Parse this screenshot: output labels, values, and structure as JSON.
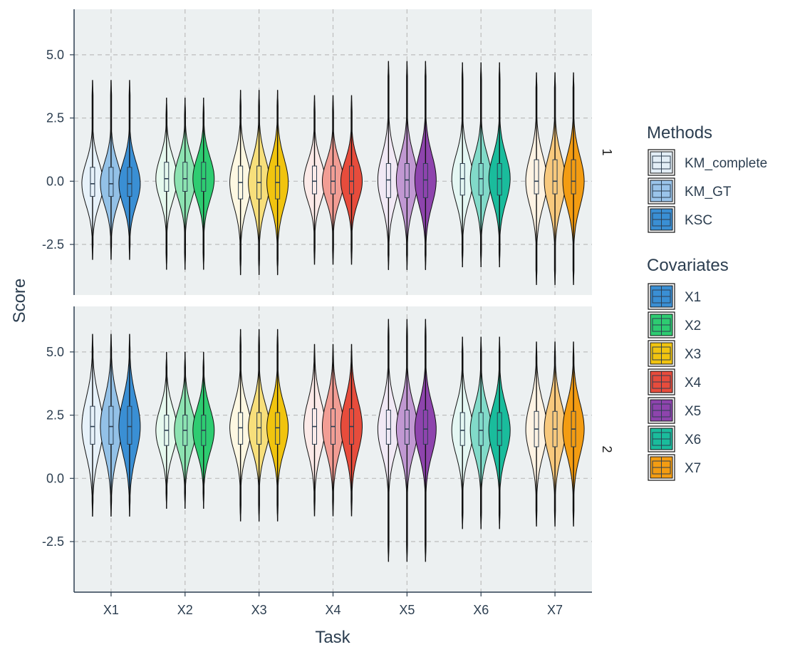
{
  "chart_data": {
    "type": "violin",
    "xlabel": "Task",
    "ylabel": "Score",
    "categories": [
      "X1",
      "X2",
      "X3",
      "X4",
      "X5",
      "X6",
      "X7"
    ],
    "ylim": [
      -4.5,
      6.8
    ],
    "yticks": [
      -2.5,
      0.0,
      2.5,
      5.0
    ],
    "ytick_labels": [
      "-2.5",
      "0.0",
      "2.5",
      "5.0"
    ],
    "grid": true,
    "methods": {
      "title": "Methods",
      "items": [
        "KM_complete",
        "KM_GT",
        "KSC"
      ]
    },
    "covariates": {
      "title": "Covariates",
      "items": [
        "X1",
        "X2",
        "X3",
        "X4",
        "X5",
        "X6",
        "X7"
      ],
      "colors": [
        "#3a8fd4",
        "#2ecc71",
        "#f1c40f",
        "#e74c3c",
        "#8e44ad",
        "#1abc9c",
        "#f39c12"
      ]
    },
    "panels": [
      {
        "strip": "1",
        "groups": [
          {
            "task": "X1",
            "median": -0.1,
            "q1": -0.6,
            "q3": 0.55,
            "min": -3.1,
            "max": 4.0
          },
          {
            "task": "X2",
            "median": 0.1,
            "q1": -0.4,
            "q3": 0.75,
            "min": -3.5,
            "max": 3.3
          },
          {
            "task": "X3",
            "median": -0.05,
            "q1": -0.7,
            "q3": 0.6,
            "min": -3.7,
            "max": 3.6
          },
          {
            "task": "X4",
            "median": 0.0,
            "q1": -0.5,
            "q3": 0.6,
            "min": -3.3,
            "max": 3.4
          },
          {
            "task": "X5",
            "median": 0.05,
            "q1": -0.65,
            "q3": 0.7,
            "min": -3.5,
            "max": 4.75
          },
          {
            "task": "X6",
            "median": 0.1,
            "q1": -0.55,
            "q3": 0.7,
            "min": -3.4,
            "max": 4.7
          },
          {
            "task": "X7",
            "median": 0.0,
            "q1": -0.5,
            "q3": 0.85,
            "min": -4.1,
            "max": 4.3
          }
        ]
      },
      {
        "strip": "2",
        "groups": [
          {
            "task": "X1",
            "median": 2.05,
            "q1": 1.35,
            "q3": 2.85,
            "min": -1.5,
            "max": 5.7
          },
          {
            "task": "X2",
            "median": 1.9,
            "q1": 1.3,
            "q3": 2.5,
            "min": -1.2,
            "max": 5.0
          },
          {
            "task": "X3",
            "median": 2.0,
            "q1": 1.35,
            "q3": 2.6,
            "min": -1.7,
            "max": 5.9
          },
          {
            "task": "X4",
            "median": 2.05,
            "q1": 1.35,
            "q3": 2.75,
            "min": -1.5,
            "max": 5.3
          },
          {
            "task": "X5",
            "median": 1.95,
            "q1": 1.35,
            "q3": 2.7,
            "min": -3.3,
            "max": 6.3
          },
          {
            "task": "X6",
            "median": 1.9,
            "q1": 1.3,
            "q3": 2.6,
            "min": -2.0,
            "max": 5.6
          },
          {
            "task": "X7",
            "median": 1.95,
            "q1": 1.25,
            "q3": 2.65,
            "min": -1.9,
            "max": 5.4
          }
        ]
      }
    ]
  }
}
